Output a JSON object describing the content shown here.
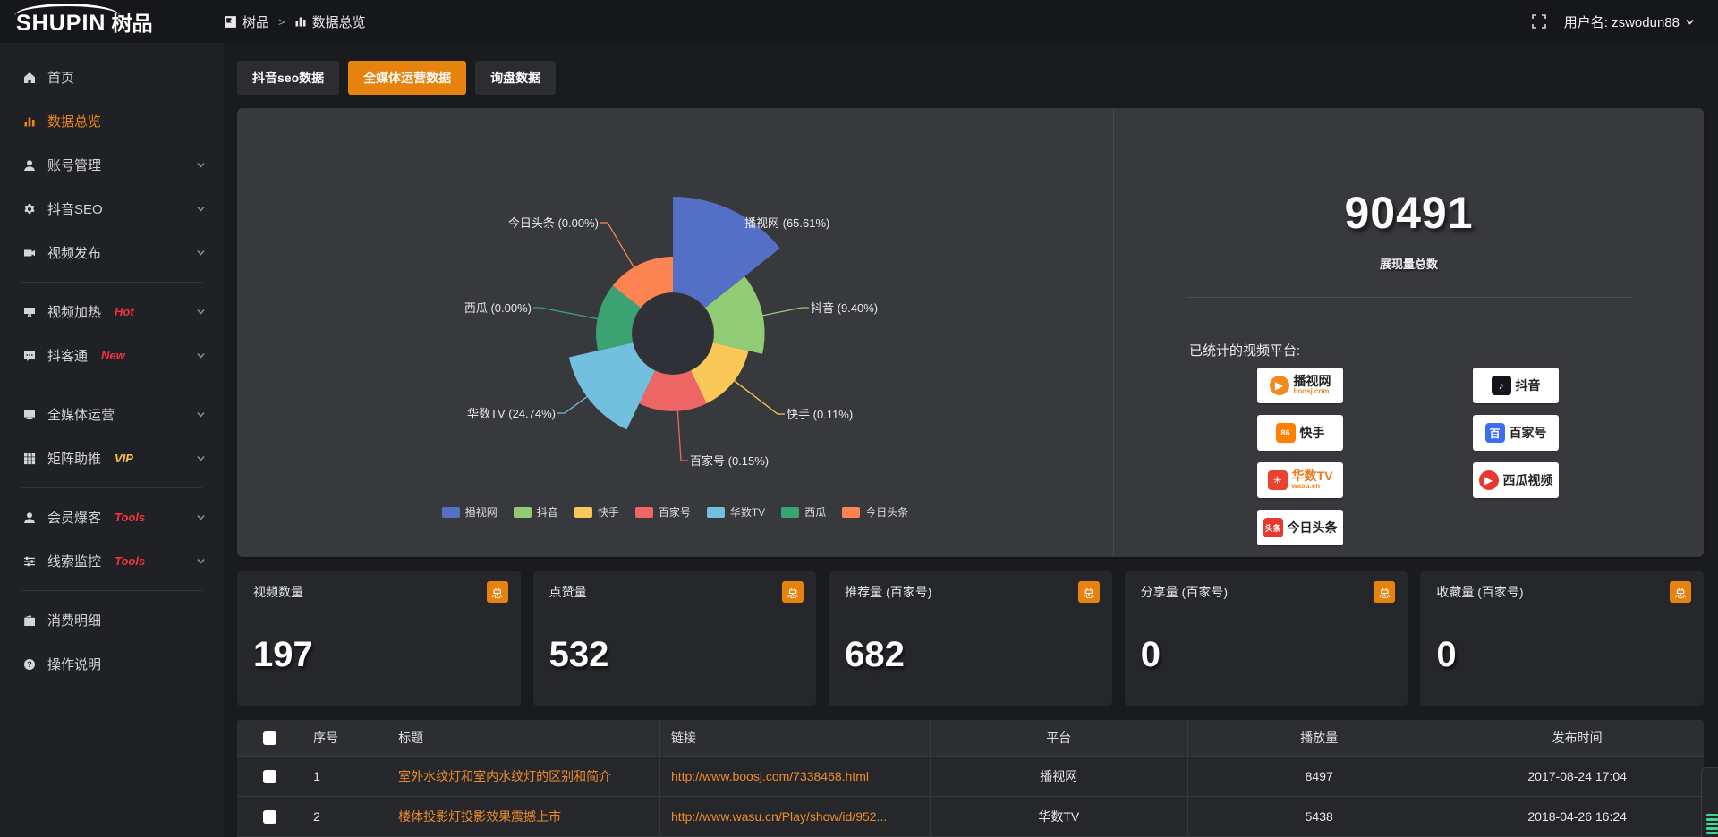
{
  "topbar": {
    "brand_latin": "SHUPIN",
    "brand_cjk": "树品",
    "breadcrumb": [
      {
        "icon": "mark",
        "label": "树品"
      },
      {
        "icon": "bars",
        "label": "数据总览"
      }
    ],
    "breadcrumb_separator": ">",
    "user_label": "用户名: zswodun88"
  },
  "sidebar": {
    "items": [
      {
        "icon": "home",
        "label": "首页"
      },
      {
        "icon": "bars",
        "label": "数据总览",
        "active": true
      },
      {
        "icon": "user",
        "label": "账号管理",
        "chevron": true
      },
      {
        "icon": "gear",
        "label": "抖音SEO",
        "chevron": true
      },
      {
        "icon": "videocam",
        "label": "视频发布",
        "chevron": true
      },
      {
        "divider": true
      },
      {
        "icon": "screen",
        "label": "视频加热",
        "badge": "Hot",
        "badge_color": "#f5313d",
        "chevron": true
      },
      {
        "icon": "chat",
        "label": "抖客通",
        "badge": "New",
        "badge_color": "#f5313d",
        "chevron": true
      },
      {
        "divider": true
      },
      {
        "icon": "monitor",
        "label": "全媒体运营",
        "chevron": true
      },
      {
        "icon": "grid",
        "label": "矩阵助推",
        "badge": "VIP",
        "badge_color": "#f6c64a",
        "chevron": true
      },
      {
        "divider": true
      },
      {
        "icon": "user",
        "label": "会员爆客",
        "badge": "Tools",
        "badge_color": "#f5313d",
        "chevron": true
      },
      {
        "icon": "sliders",
        "label": "线索监控",
        "badge": "Tools",
        "badge_color": "#f5313d",
        "chevron": true
      },
      {
        "divider": true
      },
      {
        "icon": "wallet",
        "label": "消费明细"
      },
      {
        "icon": "question",
        "label": "操作说明"
      }
    ]
  },
  "tabs": [
    {
      "label": "抖音seo数据"
    },
    {
      "label": "全媒体运营数据",
      "active": true
    },
    {
      "label": "询盘数据"
    }
  ],
  "chart_data": {
    "type": "pie",
    "variant": "nightingale-rose",
    "series": [
      {
        "name": "播视网",
        "percent": 65.61,
        "color": "#5470c6"
      },
      {
        "name": "抖音",
        "percent": 9.4,
        "color": "#91cc75"
      },
      {
        "name": "快手",
        "percent": 0.11,
        "color": "#fac858"
      },
      {
        "name": "百家号",
        "percent": 0.15,
        "color": "#ee6666"
      },
      {
        "name": "华数TV",
        "percent": 24.74,
        "color": "#73c0de"
      },
      {
        "name": "西瓜",
        "percent": 0.0,
        "color": "#3ba272"
      },
      {
        "name": "今日头条",
        "percent": 0.0,
        "color": "#fc8452"
      }
    ],
    "legend": [
      "播视网",
      "抖音",
      "快手",
      "百家号",
      "华数TV",
      "西瓜",
      "今日头条"
    ],
    "legend_position": "bottom",
    "label_format": "{name} ({percent}%)"
  },
  "summary": {
    "value": "90491",
    "label": "展现量总数",
    "platforms_title": "已统计的视频平台:",
    "platform_columns": {
      "left": [
        {
          "name": "播视网",
          "sub": "boosj.com",
          "icon_glyph": "▶",
          "icon_bg": "#f28a1e",
          "icon_shape": "circle"
        },
        {
          "name": "快手",
          "icon_glyph": "86",
          "icon_bg": "#ff7f00"
        },
        {
          "name": "华数TV",
          "sub": "wasu.cn",
          "icon_glyph": "✳",
          "icon_bg": "#e8432e",
          "name_color": "#f07820"
        },
        {
          "name": "今日头条",
          "icon_glyph": "头条",
          "icon_bg": "#e8372e"
        }
      ],
      "right": [
        {
          "name": "抖音",
          "icon_glyph": "♪",
          "icon_bg": "#14141c"
        },
        {
          "name": "百家号",
          "icon_glyph": "百",
          "icon_bg": "#3b6ef0"
        },
        {
          "name": "西瓜视频",
          "icon_glyph": "▶",
          "icon_bg": "#e8372e",
          "icon_shape": "circle"
        }
      ]
    }
  },
  "stat_cards": [
    {
      "title": "视频数量",
      "badge": "总",
      "value": "197"
    },
    {
      "title": "点赞量",
      "badge": "总",
      "value": "532"
    },
    {
      "title": "推荐量 (百家号)",
      "badge": "总",
      "value": "682"
    },
    {
      "title": "分享量 (百家号)",
      "badge": "总",
      "value": "0"
    },
    {
      "title": "收藏量 (百家号)",
      "badge": "总",
      "value": "0"
    }
  ],
  "table": {
    "columns": [
      "序号",
      "标题",
      "链接",
      "平台",
      "播放量",
      "发布时间"
    ],
    "rows": [
      {
        "no": "1",
        "title": "室外水纹灯和室内水纹灯的区别和简介",
        "link": "http://www.boosj.com/7338468.html",
        "platform": "播视网",
        "plays": "8497",
        "time": "2017-08-24 17:04"
      },
      {
        "no": "2",
        "title": "楼体投影灯投影效果震撼上市",
        "link": "http://www.wasu.cn/Play/show/id/952...",
        "platform": "华数TV",
        "plays": "5438",
        "time": "2018-04-26 16:24"
      }
    ]
  },
  "colors": {
    "accent": "#e8820e",
    "sidebar_active": "#f08519",
    "hot_red": "#f5313d",
    "vip_gold": "#f6c64a",
    "link_orange": "#ef8b2d"
  }
}
